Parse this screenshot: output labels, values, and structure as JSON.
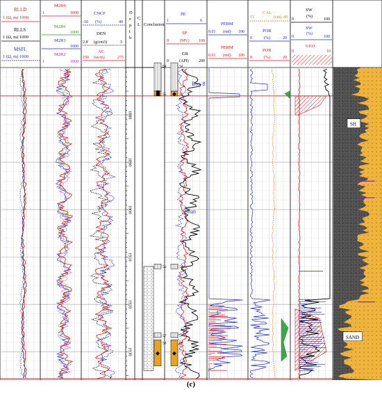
{
  "chart_data": {
    "type": "line",
    "depth_range": [
      1870,
      1936
    ],
    "depth_ticks": [
      "1880",
      "1890",
      "1900",
      "1910",
      "1920",
      "1930"
    ],
    "depth_label": "Depth",
    "cl_label": "C L",
    "conclusion_label": "Conclusion",
    "tracks": {
      "resistivity": {
        "curves": [
          {
            "name": "RLLD",
            "unit": "(Ω, m)",
            "min": "1",
            "max": "1000",
            "color": "#e8141e"
          },
          {
            "name": "RLLS",
            "unit": "(Ω, m)",
            "min": "1",
            "max": "1000",
            "color": "#000000"
          },
          {
            "name": "MSFL",
            "unit": "(Ω, m)",
            "min": "1",
            "max": "1000",
            "color": "#1e2ad8"
          }
        ]
      },
      "microres": {
        "curves": [
          {
            "name": "M2R9",
            "min": "1",
            "max": "1000",
            "color": "#e8141e"
          },
          {
            "name": "M2R6",
            "min": "1",
            "max": "1000",
            "color": "#2a9a22"
          },
          {
            "name": "M2R3",
            "min": "1",
            "max": "1000",
            "color": "#1e2ad8"
          },
          {
            "name": "M2R2",
            "min": "1",
            "max": "1000",
            "color": "#cc22cc"
          }
        ]
      },
      "porosity": {
        "curves": [
          {
            "name": "CNCF",
            "unit": "(%)",
            "min": "-10",
            "max": "40",
            "color": "#1e2ad8"
          },
          {
            "name": "DEN",
            "unit": "(g/cm3)",
            "min": "2.8",
            "max": "3",
            "color": "#000000"
          },
          {
            "name": "AC",
            "unit": "(us/m)",
            "min": "150",
            "max": "275",
            "color": "#e8141e"
          }
        ]
      },
      "lithology_gr": {
        "curves": [
          {
            "name": "PE",
            "unit": "",
            "min": "1",
            "max": "6",
            "color": "#1e2ad8"
          },
          {
            "name": "SP",
            "unit": "(MV)",
            "min": "0",
            "max": "100",
            "color": "#e8141e"
          },
          {
            "name": "GR",
            "unit": "(API)",
            "min": "0",
            "max": "200",
            "color": "#000000"
          }
        ]
      },
      "permeability": {
        "curves": [
          {
            "name": "PERM",
            "unit": "(md)",
            "min": "0.01",
            "max": "100",
            "color": "#1e2ad8"
          },
          {
            "name": "PERM",
            "unit": "(md)",
            "min": "0.01",
            "max": "100",
            "color": "#e8141e"
          }
        ]
      },
      "cal_por": {
        "curves": [
          {
            "name": "CAL",
            "unit": "(cm)",
            "min": "15",
            "max": "40",
            "color": "#e87a14"
          },
          {
            "name": "POR",
            "unit": "(%)",
            "min": "0",
            "max": "20",
            "color": "#1e2ad8"
          },
          {
            "name": "POR",
            "unit": "(%)",
            "min": "0",
            "max": "20",
            "color": "#e8141e"
          }
        ]
      },
      "saturation": {
        "curves": [
          {
            "name": "SW",
            "unit": "(%)",
            "min": "0",
            "max": "100",
            "color": "#000000"
          },
          {
            "name": "SW",
            "unit": "(%)",
            "min": "0",
            "max": "100",
            "color": "#1e2ad8"
          },
          {
            "name": "GEO",
            "unit": "",
            "min": "0",
            "max": "10",
            "color": "#e8141e"
          }
        ]
      }
    },
    "layers": [
      {
        "id": "54",
        "top": 1869,
        "bottom": 1875
      },
      {
        "id": "55",
        "top": 1875,
        "bottom": 1876
      },
      {
        "id": "56",
        "top": 1911.5,
        "bottom": 1912.5
      },
      {
        "id": "57",
        "top": 1926,
        "bottom": 1927
      },
      {
        "id": "58",
        "top": 1927.5,
        "bottom": 1933
      }
    ],
    "annotations": [
      {
        "text": "Box 8",
        "depth": 1873.5
      },
      {
        "text": "Shan",
        "depth": 1900.5
      },
      {
        "text": "SH",
        "depth": 1882
      },
      {
        "text": "SAND",
        "depth": 1927
      }
    ],
    "horizontal_marker_depth": 1876
  },
  "caption": "(c)"
}
